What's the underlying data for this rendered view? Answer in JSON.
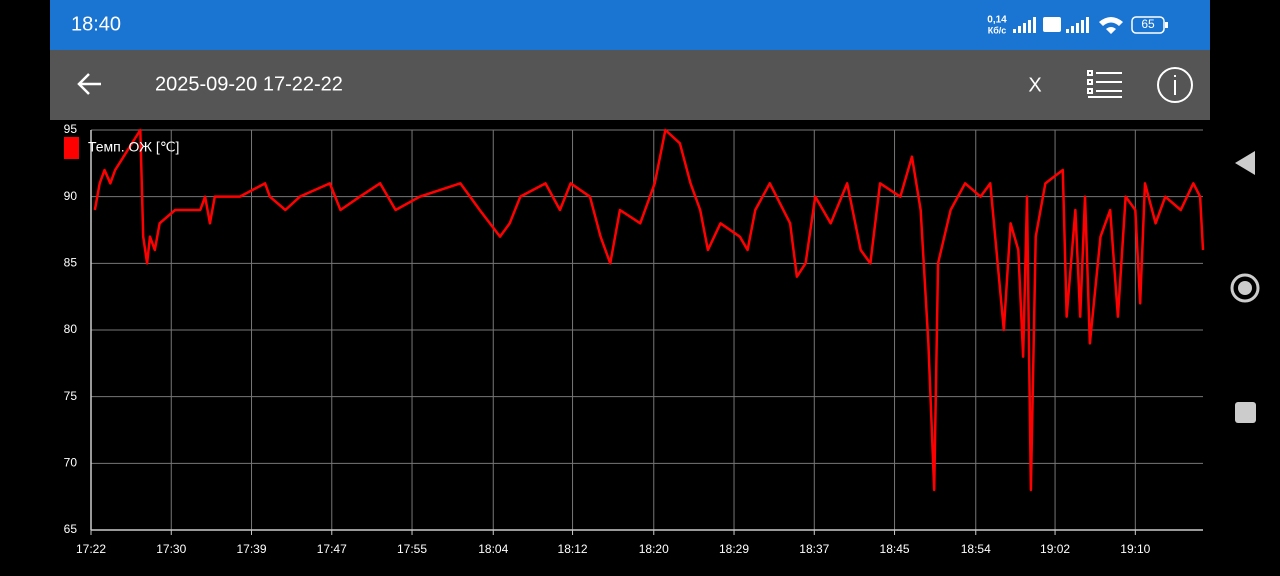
{
  "status_bar": {
    "time": "18:40",
    "net_speed": "0,14",
    "net_unit": "Кб/с",
    "battery": "65"
  },
  "toolbar": {
    "title": "2025-09-20 17-22-22",
    "close": "X"
  },
  "chart_data": {
    "type": "line",
    "x": [
      1042.4,
      1042.9,
      1043.4,
      1044.0,
      1044.5,
      1047.1,
      1047.4,
      1047.8,
      1048.1,
      1048.6,
      1049.1,
      1050.7,
      1053.3,
      1053.8,
      1054.3,
      1054.8,
      1057.4,
      1060.0,
      1060.5,
      1062.1,
      1063.6,
      1066.7,
      1067.8,
      1069.8,
      1071.9,
      1073.5,
      1076.0,
      1080.2,
      1081.2,
      1082.2,
      1084.3,
      1085.3,
      1086.4,
      1089.0,
      1090.5,
      1091.6,
      1093.6,
      1094.7,
      1095.7,
      1096.7,
      1098.8,
      1100.3,
      1101.4,
      1102.9,
      1104.0,
      1105.0,
      1105.8,
      1107.1,
      1109.1,
      1109.9,
      1110.7,
      1112.2,
      1114.3,
      1115.0,
      1115.9,
      1116.9,
      1118.5,
      1120.2,
      1121.6,
      1122.6,
      1123.6,
      1125.7,
      1126.9,
      1127.8,
      1128.6,
      1129.2,
      1129.6,
      1130.9,
      1132.4,
      1134.0,
      1135.0,
      1136.4,
      1137.1,
      1137.9,
      1138.4,
      1138.8,
      1139.2,
      1139.7,
      1140.7,
      1142.5,
      1142.9,
      1143.8,
      1144.3,
      1144.8,
      1145.3,
      1146.4,
      1147.4,
      1148.2,
      1149.0,
      1150.0,
      1150.5,
      1151.0,
      1152.1,
      1153.1,
      1154.7,
      1156.0,
      1156.7,
      1157.0
    ],
    "series": [
      {
        "name": "Темп. ОЖ [℃]",
        "color": "#ff0000",
        "values": [
          89,
          91,
          92,
          91,
          92,
          95,
          87,
          85,
          87,
          86,
          88,
          89,
          89,
          90,
          88,
          90,
          90,
          91,
          90,
          89,
          90,
          91,
          89,
          90,
          91,
          89,
          90,
          91,
          90,
          89,
          87,
          88,
          90,
          91,
          89,
          91,
          90,
          87,
          85,
          89,
          88,
          91,
          95,
          94,
          91,
          89,
          86,
          88,
          87,
          86,
          89,
          91,
          88,
          84,
          85,
          90,
          88,
          91,
          86,
          85,
          91,
          90,
          93,
          89,
          79,
          68,
          85,
          89,
          91,
          90,
          91,
          80,
          88,
          86,
          78,
          90,
          68,
          87,
          91,
          92,
          81,
          89,
          81,
          90,
          79,
          87,
          89,
          81,
          90,
          89,
          82,
          91,
          88,
          90,
          89,
          91,
          90,
          86
        ]
      }
    ],
    "xlim": [
      1042,
      1157
    ],
    "xticks": [
      {
        "value": 1042,
        "label": "17:22"
      },
      {
        "value": 1050.3,
        "label": "17:30"
      },
      {
        "value": 1058.6,
        "label": "17:39"
      },
      {
        "value": 1066.9,
        "label": "17:47"
      },
      {
        "value": 1075.2,
        "label": "17:55"
      },
      {
        "value": 1083.6,
        "label": "18:04"
      },
      {
        "value": 1091.8,
        "label": "18:12"
      },
      {
        "value": 1100.2,
        "label": "18:20"
      },
      {
        "value": 1108.5,
        "label": "18:29"
      },
      {
        "value": 1116.8,
        "label": "18:37"
      },
      {
        "value": 1125.1,
        "label": "18:45"
      },
      {
        "value": 1133.5,
        "label": "18:54"
      },
      {
        "value": 1141.7,
        "label": "19:02"
      },
      {
        "value": 1150.0,
        "label": "19:10"
      }
    ],
    "ylim": [
      65,
      95
    ],
    "yticks": [
      65,
      70,
      75,
      80,
      85,
      90,
      95
    ],
    "grid": true,
    "legend": "top-left"
  }
}
